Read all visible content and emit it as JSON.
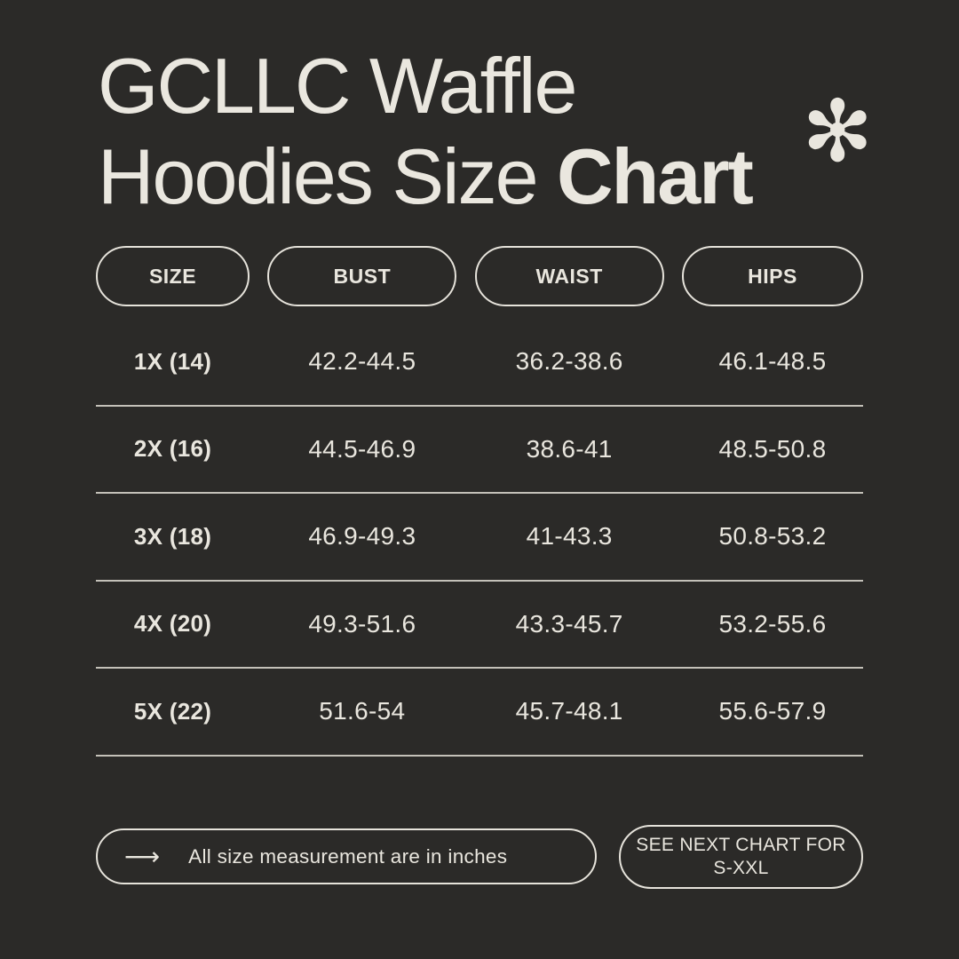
{
  "page": {
    "background_color": "#2b2a28",
    "text_color": "#e9e6de",
    "border_color": "#e6e3db",
    "divider_color": "#c4c1b9"
  },
  "title": {
    "line1": "GCLLC Waffle",
    "line2_regular": "Hoodies Size ",
    "line2_bold": "Chart",
    "full": "GCLLC Waffle Hoodies Size Chart"
  },
  "icons": {
    "asterisk": "✻",
    "arrow": "⟶"
  },
  "chart_data": {
    "type": "table",
    "title": "GCLLC Waffle Hoodies Size Chart",
    "units": "inches",
    "columns": [
      "SIZE",
      "BUST",
      "WAIST",
      "HIPS"
    ],
    "rows": [
      [
        "1X (14)",
        "42.2-44.5",
        "36.2-38.6",
        "46.1-48.5"
      ],
      [
        "2X (16)",
        "44.5-46.9",
        "38.6-41",
        "48.5-50.8"
      ],
      [
        "3X (18)",
        "46.9-49.3",
        "41-43.3",
        "50.8-53.2"
      ],
      [
        "4X (20)",
        "49.3-51.6",
        "43.3-45.7",
        "53.2-55.6"
      ],
      [
        "5X (22)",
        "51.6-54",
        "45.7-48.1",
        "55.6-57.9"
      ]
    ]
  },
  "footer": {
    "note": "All size measurement are in inches",
    "next_chart": "SEE NEXT CHART FOR S-XXL"
  }
}
